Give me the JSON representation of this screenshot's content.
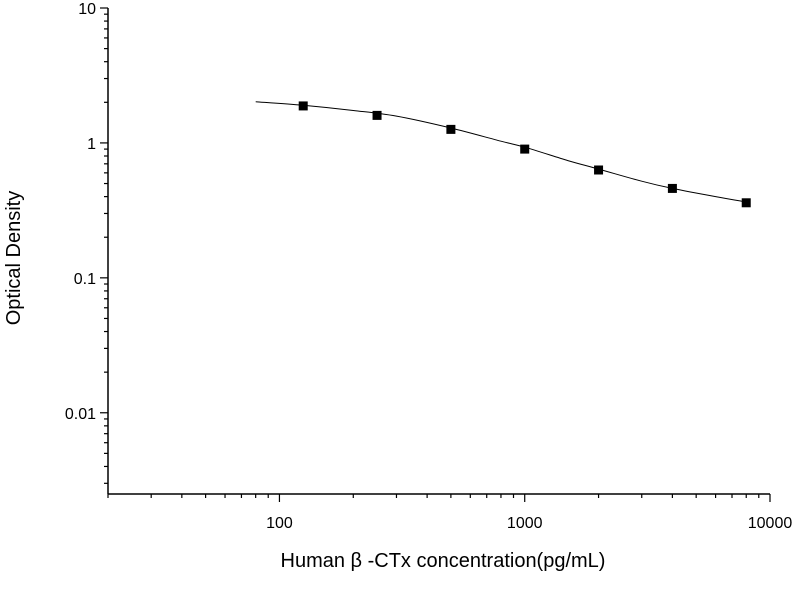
{
  "chart_data": {
    "type": "scatter",
    "title": "",
    "xlabel": "Human β -CTx concentration(pg/mL)",
    "ylabel": "Optical Density",
    "x_scale": "log",
    "y_scale": "log",
    "xlim": [
      20,
      10000
    ],
    "ylim": [
      0.0025,
      10
    ],
    "x_ticks": [
      {
        "value": 100,
        "label": "100"
      },
      {
        "value": 1000,
        "label": "1000"
      },
      {
        "value": 10000,
        "label": "10000"
      }
    ],
    "y_ticks": [
      {
        "value": 10,
        "label": "10"
      },
      {
        "value": 1,
        "label": "1"
      },
      {
        "value": 0.1,
        "label": "0.1"
      },
      {
        "value": 0.01,
        "label": "0.01"
      }
    ],
    "grid": false,
    "legend": "none",
    "series": [
      {
        "x": [
          125,
          250,
          500,
          1000,
          2000,
          4000,
          8000
        ],
        "y": [
          1.88,
          1.6,
          1.26,
          0.9,
          0.63,
          0.46,
          0.36
        ],
        "marker": "square",
        "color": "#000000"
      }
    ],
    "fit_curve": {
      "x": [
        80,
        125,
        200,
        300,
        500,
        800,
        1000,
        1500,
        2000,
        3000,
        4000,
        6000,
        8000
      ],
      "y": [
        2.02,
        1.9,
        1.74,
        1.58,
        1.29,
        1.03,
        0.93,
        0.74,
        0.64,
        0.52,
        0.46,
        0.4,
        0.365
      ],
      "color": "#000000"
    }
  }
}
